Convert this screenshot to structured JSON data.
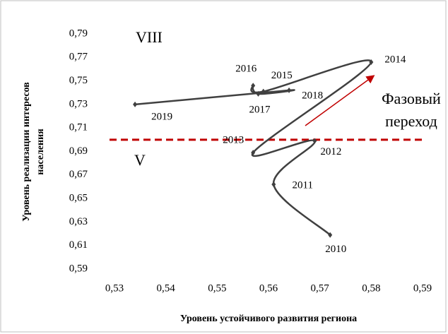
{
  "chart_data": {
    "type": "line",
    "x_label": "Уровень устойчивого развития региона",
    "y_label": [
      "Уровень реализации интересов",
      "населения"
    ],
    "point_labels": [
      "2010",
      "2011",
      "2012",
      "2013",
      "2014",
      "2015",
      "2016",
      "2017",
      "2018",
      "2019"
    ],
    "series": [
      {
        "color": "#404040",
        "x": [
          0.572,
          0.561,
          0.569,
          0.557,
          0.58,
          0.559,
          0.557,
          0.558,
          0.564,
          0.534
        ],
        "values": [
          0.619,
          0.662,
          0.699,
          0.689,
          0.766,
          0.741,
          0.746,
          0.739,
          0.742,
          0.73
        ]
      }
    ],
    "threshold": {
      "value": 0.7,
      "color": "#c00000"
    },
    "annotations": [
      "VIII",
      "V",
      "Фазовый",
      "переход"
    ],
    "arrow_color": "#c00000",
    "xlim": [
      0.53,
      0.59
    ],
    "xticks": [
      {
        "value": 0.53,
        "label": "0,53"
      },
      {
        "value": 0.54,
        "label": "0,54"
      },
      {
        "value": 0.55,
        "label": "0,55"
      },
      {
        "value": 0.56,
        "label": "0,56"
      },
      {
        "value": 0.57,
        "label": "0,57"
      },
      {
        "value": 0.58,
        "label": "0,58"
      },
      {
        "value": 0.59,
        "label": "0,59"
      }
    ],
    "ylim": [
      0.59,
      0.79
    ],
    "yticks": [
      {
        "value": 0.59,
        "label": "0,59"
      },
      {
        "value": 0.61,
        "label": "0,61"
      },
      {
        "value": 0.63,
        "label": "0,63"
      },
      {
        "value": 0.65,
        "label": "0,65"
      },
      {
        "value": 0.67,
        "label": "0,67"
      },
      {
        "value": 0.69,
        "label": "0,69"
      },
      {
        "value": 0.71,
        "label": "0,71"
      },
      {
        "value": 0.73,
        "label": "0,73"
      },
      {
        "value": 0.75,
        "label": "0,75"
      },
      {
        "value": 0.77,
        "label": "0,77"
      },
      {
        "value": 0.79,
        "label": "0,79"
      }
    ],
    "grid": false
  }
}
